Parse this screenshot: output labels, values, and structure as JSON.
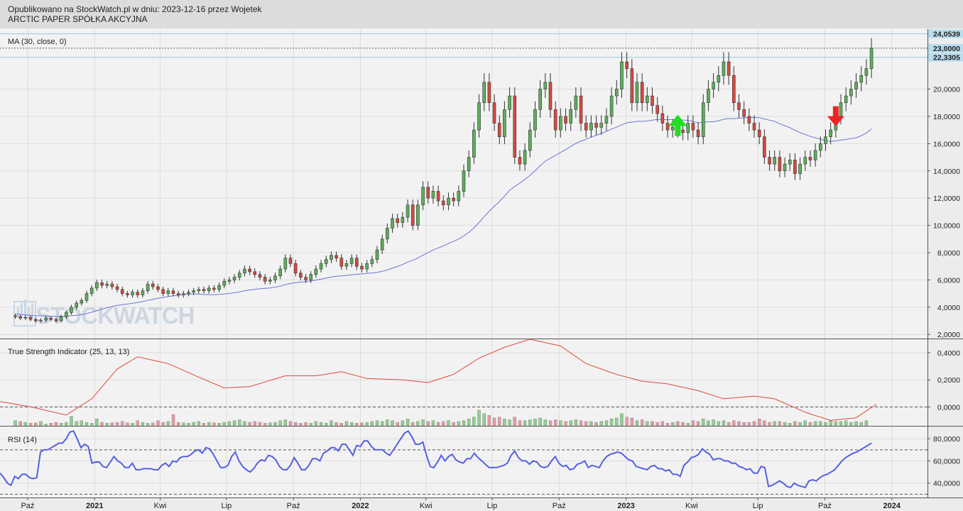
{
  "header": {
    "line1": "Opublikowano na StockWatch.pl w dniu: 2023-12-16 przez Wojetek",
    "line2": "ARCTIC PAPER SPÓŁKA AKCYJNA"
  },
  "watermark": "STOCKWATCH",
  "colors": {
    "up": "#5bb05b",
    "down": "#d9493f",
    "ma": "#6b75d9",
    "tsi": "#e2483b",
    "rsi": "#5560e0",
    "arrow_up": "#22dd22",
    "arrow_down": "#ee2222"
  },
  "chart_data": [
    {
      "type": "candlestick",
      "legend": "MA (30, close, 0)",
      "ylim": [
        1.7,
        24.4
      ],
      "yticks": [
        2,
        4,
        6,
        8,
        10,
        12,
        14,
        16,
        18,
        20
      ],
      "ytick_labels": [
        "2,0000",
        "4,0000",
        "6,0000",
        "8,0000",
        "10,0000",
        "12,0000",
        "14,0000",
        "16,0000",
        "18,0000",
        "20,0000"
      ],
      "price_tags": [
        {
          "value": 24.0539,
          "label": "24,0539",
          "line": "solid"
        },
        {
          "value": 23.0,
          "label": "23,0000",
          "line": "dotted"
        },
        {
          "value": 22.3305,
          "label": "22,3305",
          "line": "solid"
        }
      ],
      "x_start": "2020-08-24",
      "x_end": "2024-02-19",
      "weeks_start": "2020-09-14",
      "closes": [
        3.3,
        3.2,
        3.25,
        3.1,
        3.0,
        3.05,
        3.2,
        3.1,
        3.0,
        3.3,
        3.6,
        4.0,
        4.3,
        4.5,
        5.0,
        5.4,
        5.8,
        5.6,
        5.7,
        5.5,
        5.3,
        5.0,
        4.9,
        5.1,
        4.9,
        5.2,
        5.7,
        5.5,
        5.3,
        5.0,
        5.2,
        5.0,
        4.9,
        5.0,
        5.1,
        5.2,
        5.3,
        5.2,
        5.4,
        5.3,
        5.6,
        5.9,
        6.0,
        6.2,
        6.5,
        6.8,
        6.6,
        6.4,
        6.2,
        5.9,
        6.0,
        6.3,
        6.8,
        7.6,
        7.2,
        6.5,
        6.2,
        6.0,
        6.4,
        6.8,
        7.2,
        7.5,
        7.8,
        7.6,
        7.0,
        7.2,
        7.6,
        7.0,
        6.8,
        7.2,
        7.5,
        8.2,
        9.0,
        9.8,
        10.5,
        10.2,
        10.6,
        11.5,
        10.0,
        11.5,
        12.8,
        12.0,
        12.5,
        11.8,
        11.5,
        12.0,
        11.8,
        12.5,
        14.0,
        15.0,
        17.0,
        19.0,
        20.5,
        19.0,
        17.5,
        16.5,
        18.5,
        19.5,
        15.0,
        14.5,
        15.5,
        17.0,
        18.5,
        20.0,
        20.5,
        18.5,
        17.0,
        18.0,
        17.5,
        18.5,
        19.5,
        17.5,
        17.0,
        17.5,
        17.2,
        17.5,
        18.0,
        19.5,
        20.0,
        22.0,
        21.5,
        19.0,
        20.5,
        19.0,
        19.5,
        18.8,
        18.2,
        17.5,
        17.0,
        17.2,
        17.0,
        16.8,
        17.5,
        17.0,
        16.5,
        19.0,
        20.0,
        20.5,
        21.0,
        22.0,
        21.0,
        19.0,
        18.5,
        18.0,
        17.5,
        17.0,
        16.5,
        15.0,
        14.5,
        15.0,
        14.0,
        14.5,
        14.8,
        13.8,
        14.5,
        15.0,
        14.8,
        15.5,
        16.0,
        16.5,
        17.0,
        18.0,
        19.0,
        19.5,
        20.0,
        20.5,
        21.0,
        21.5,
        23.0
      ],
      "ma_values": [
        3.5,
        3.47,
        3.44,
        3.41,
        3.38,
        3.36,
        3.35,
        3.34,
        3.33,
        3.33,
        3.34,
        3.37,
        3.41,
        3.46,
        3.53,
        3.63,
        3.75,
        3.86,
        3.96,
        4.05,
        4.13,
        4.18,
        4.23,
        4.29,
        4.34,
        4.41,
        4.5,
        4.58,
        4.65,
        4.71,
        4.78,
        4.83,
        4.88,
        4.91,
        4.95,
        4.97,
        4.96,
        4.93,
        4.92,
        4.92,
        4.94,
        4.97,
        5.01,
        5.06,
        5.12,
        5.2,
        5.26,
        5.31,
        5.35,
        5.38,
        5.41,
        5.47,
        5.54,
        5.65,
        5.74,
        5.8,
        5.84,
        5.88,
        5.93,
        5.99,
        6.06,
        6.13,
        6.21,
        6.27,
        6.29,
        6.33,
        6.38,
        6.41,
        6.44,
        6.48,
        6.51,
        6.56,
        6.63,
        6.73,
        6.86,
        6.99,
        7.13,
        7.31,
        7.44,
        7.61,
        7.82,
        8.01,
        8.2,
        8.35,
        8.5,
        8.67,
        8.83,
        9.0,
        9.23,
        9.49,
        9.82,
        10.21,
        10.64,
        11.04,
        11.41,
        11.75,
        12.15,
        12.58,
        12.85,
        13.1,
        13.38,
        13.67,
        14.01,
        14.38,
        14.71,
        14.93,
        15.13,
        15.35,
        15.56,
        15.79,
        16.02,
        16.18,
        16.32,
        16.47,
        16.61,
        16.75,
        16.9,
        17.07,
        17.21,
        17.38,
        17.52,
        17.58,
        17.63,
        17.63,
        17.66,
        17.72,
        17.78,
        17.78,
        17.75,
        17.77,
        17.76,
        17.73,
        17.71,
        17.62,
        17.52,
        17.58,
        17.6,
        17.6,
        17.68,
        17.79,
        17.84,
        17.83,
        17.86,
        17.91,
        17.91,
        17.92,
        17.9,
        17.81,
        17.72,
        17.63,
        17.46,
        17.32,
        17.17,
        16.97,
        16.81,
        16.67,
        16.53,
        16.43,
        16.33,
        16.22,
        16.16,
        16.2,
        16.25,
        16.31,
        16.37,
        16.43,
        16.58,
        16.78,
        17.08
      ]
    },
    {
      "type": "line",
      "legend": "True Strength Indicator (25, 13, 13)",
      "ylim": [
        -0.14,
        0.5
      ],
      "yticks": [
        0,
        0.2,
        0.4
      ],
      "ytick_labels": [
        "0,0000",
        "0,2000",
        "0,4000"
      ],
      "zero_line": 0,
      "points": [
        [
          "2020-08-24",
          0.04
        ],
        [
          "2020-10-05",
          0.0
        ],
        [
          "2020-11-23",
          -0.06
        ],
        [
          "2020-12-28",
          0.06
        ],
        [
          "2021-02-01",
          0.28
        ],
        [
          "2021-03-01",
          0.37
        ],
        [
          "2021-04-12",
          0.32
        ],
        [
          "2021-05-24",
          0.22
        ],
        [
          "2021-06-28",
          0.14
        ],
        [
          "2021-08-02",
          0.15
        ],
        [
          "2021-09-20",
          0.23
        ],
        [
          "2021-11-01",
          0.23
        ],
        [
          "2021-12-06",
          0.26
        ],
        [
          "2022-01-10",
          0.21
        ],
        [
          "2022-02-28",
          0.2
        ],
        [
          "2022-04-04",
          0.18
        ],
        [
          "2022-05-09",
          0.24
        ],
        [
          "2022-06-13",
          0.36
        ],
        [
          "2022-07-18",
          0.44
        ],
        [
          "2022-08-22",
          0.5
        ],
        [
          "2022-10-03",
          0.45
        ],
        [
          "2022-11-07",
          0.32
        ],
        [
          "2022-12-19",
          0.24
        ],
        [
          "2023-01-23",
          0.19
        ],
        [
          "2023-02-27",
          0.17
        ],
        [
          "2023-04-10",
          0.12
        ],
        [
          "2023-05-15",
          0.06
        ],
        [
          "2023-06-26",
          0.08
        ],
        [
          "2023-07-24",
          0.06
        ],
        [
          "2023-09-04",
          -0.04
        ],
        [
          "2023-10-09",
          -0.1
        ],
        [
          "2023-11-13",
          -0.08
        ],
        [
          "2023-12-11",
          0.02
        ]
      ],
      "bar_values": [
        0.6,
        0.5,
        0.4,
        0.3,
        0.35,
        0.5,
        0.2,
        0.3,
        0.4,
        0.3,
        0.4,
        1.1,
        0.5,
        0.6,
        0.4,
        0.3,
        0.8,
        0.4,
        0.3,
        0.35,
        0.4,
        0.5,
        0.35,
        0.3,
        0.6,
        0.4,
        0.3,
        0.35,
        0.6,
        0.4,
        0.5,
        1.3,
        0.4,
        0.35,
        0.3,
        0.4,
        0.5,
        0.3,
        0.4,
        0.35,
        0.3,
        0.4,
        0.5,
        0.6,
        0.7,
        0.5,
        0.4,
        0.5,
        0.4,
        0.3,
        0.35,
        0.4,
        0.6,
        0.7,
        0.5,
        0.4,
        0.3,
        0.4,
        0.3,
        0.5,
        0.4,
        0.3,
        0.6,
        0.4,
        0.3,
        0.5,
        0.4,
        0.3,
        0.35,
        0.4,
        0.5,
        0.6,
        0.5,
        0.7,
        0.6,
        0.4,
        0.6,
        0.8,
        0.4,
        0.5,
        0.7,
        0.5,
        0.6,
        0.4,
        0.5,
        0.6,
        0.4,
        0.5,
        0.6,
        0.8,
        1.0,
        1.8,
        1.4,
        1.2,
        0.9,
        1.0,
        0.8,
        0.7,
        1.0,
        0.6,
        0.6,
        0.7,
        0.8,
        0.9,
        0.7,
        0.6,
        0.7,
        0.6,
        0.5,
        0.6,
        0.7,
        0.6,
        0.5,
        0.5,
        0.4,
        0.5,
        0.6,
        0.8,
        0.9,
        1.4,
        1.0,
        0.9,
        0.6,
        0.7,
        0.5,
        0.5,
        0.4,
        0.5,
        0.3,
        0.4,
        0.5,
        0.4,
        0.3,
        0.6,
        0.5,
        0.8,
        0.6,
        0.7,
        0.5,
        0.6,
        0.4,
        0.6,
        0.5,
        0.4,
        0.4,
        0.5,
        0.8,
        0.6,
        0.4,
        0.5,
        0.5,
        0.4,
        0.3,
        0.5,
        0.4,
        0.6,
        0.4,
        0.5,
        0.5,
        0.4,
        0.6,
        0.5,
        0.5,
        0.6,
        0.4,
        0.5,
        0.4,
        0.6
      ]
    },
    {
      "type": "line",
      "legend": "RSI (14)",
      "ylim": [
        27,
        91
      ],
      "yticks": [
        40,
        60,
        80
      ],
      "ytick_labels": [
        "40,0000",
        "60,0000",
        "80,0000"
      ],
      "levels": [
        30,
        70
      ],
      "values": [
        49,
        45,
        40,
        38,
        46,
        44,
        48,
        48,
        45,
        44,
        45,
        68,
        70,
        70,
        72,
        74,
        76,
        76,
        80,
        86,
        87,
        80,
        72,
        75,
        73,
        58,
        59,
        59,
        55,
        54,
        59,
        64,
        60,
        58,
        54,
        54,
        58,
        52,
        52,
        53,
        53,
        53,
        52,
        52,
        56,
        58,
        55,
        60,
        59,
        63,
        64,
        64,
        66,
        69,
        70,
        67,
        72,
        71,
        66,
        60,
        54,
        54,
        56,
        64,
        68,
        60,
        55,
        52,
        50,
        53,
        58,
        61,
        60,
        65,
        64,
        61,
        55,
        52,
        52,
        56,
        63,
        58,
        52,
        52,
        56,
        62,
        62,
        60,
        67,
        69,
        72,
        72,
        69,
        75,
        75,
        70,
        65,
        74,
        73,
        78,
        78,
        73,
        70,
        70,
        70,
        67,
        65,
        70,
        75,
        80,
        85,
        87,
        82,
        75,
        75,
        77,
        65,
        55,
        54,
        59,
        65,
        60,
        64,
        66,
        61,
        59,
        58,
        62,
        62,
        67,
        63,
        60,
        57,
        54,
        54,
        54,
        55,
        56,
        58,
        65,
        69,
        63,
        60,
        60,
        57,
        60,
        59,
        55,
        54,
        55,
        60,
        64,
        58,
        55,
        56,
        52,
        53,
        57,
        58,
        60,
        54,
        56,
        55,
        54,
        60,
        64,
        66,
        67,
        68,
        67,
        64,
        61,
        60,
        55,
        54,
        53,
        52,
        55,
        56,
        53,
        53,
        51,
        52,
        48,
        48,
        46,
        56,
        59,
        63,
        64,
        66,
        71,
        68,
        66,
        61,
        62,
        62,
        60,
        60,
        58,
        58,
        55,
        54,
        52,
        53,
        49,
        49,
        55,
        54,
        37,
        38,
        40,
        42,
        40,
        37,
        36,
        40,
        38,
        37,
        36,
        42,
        43,
        42,
        45,
        47,
        48,
        50,
        52,
        56,
        60,
        63,
        65,
        67,
        68,
        70,
        72,
        74,
        76
      ]
    }
  ],
  "x_axis": {
    "ticks": [
      {
        "date": "2020-10-01",
        "label": "Paź"
      },
      {
        "date": "2021-01-01",
        "label": "2021"
      },
      {
        "date": "2021-04-01",
        "label": "Kwi"
      },
      {
        "date": "2021-07-01",
        "label": "Lip"
      },
      {
        "date": "2021-10-01",
        "label": "Paź"
      },
      {
        "date": "2022-01-01",
        "label": "2022"
      },
      {
        "date": "2022-04-01",
        "label": "Kwi"
      },
      {
        "date": "2022-07-01",
        "label": "Lip"
      },
      {
        "date": "2022-10-01",
        "label": "Paź"
      },
      {
        "date": "2023-01-01",
        "label": "2023"
      },
      {
        "date": "2023-04-01",
        "label": "Kwi"
      },
      {
        "date": "2023-07-01",
        "label": "Lip"
      },
      {
        "date": "2023-10-01",
        "label": "Paź"
      },
      {
        "date": "2024-01-01",
        "label": "2024"
      }
    ]
  },
  "signals": [
    {
      "type": "buy",
      "date": "2023-03-13",
      "value": 17.6
    },
    {
      "type": "sell",
      "date": "2023-10-16",
      "value": 17.8
    }
  ]
}
